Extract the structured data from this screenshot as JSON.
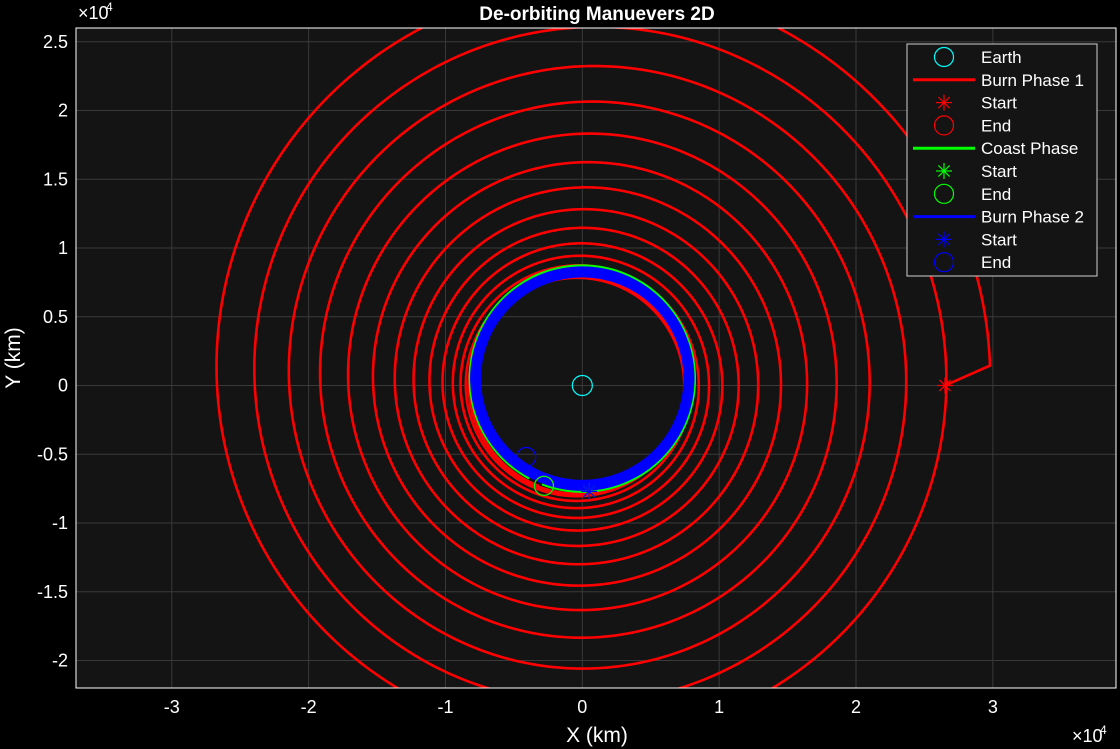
{
  "chart_data": {
    "type": "line",
    "title": "De-orbiting Manuevers 2D",
    "xlabel": "X (km)",
    "ylabel": "Y (km)",
    "x_exponent_label": "×10",
    "y_exponent_label": "×10",
    "exponent": "4",
    "xlim": [
      -3.7,
      3.9
    ],
    "ylim": [
      -2.2,
      2.6
    ],
    "x_ticks": [
      -3,
      -2,
      -1,
      0,
      1,
      2,
      3
    ],
    "x_tick_labels": [
      "-3",
      "-2",
      "-1",
      "0",
      "1",
      "2",
      "3"
    ],
    "y_ticks": [
      -2,
      -1.5,
      -1,
      -0.5,
      0,
      0.5,
      1,
      1.5,
      2,
      2.5
    ],
    "y_tick_labels": [
      "-2",
      "-1.5",
      "-1",
      "-0.5",
      "0",
      "0.5",
      "1",
      "1.5",
      "2",
      "2.5"
    ],
    "grid": true,
    "legend_position": "top-right",
    "colors": {
      "background": "#000000",
      "axes": "#141414",
      "grid": "#3a3a3a",
      "text": "#ffffff",
      "earth": "#00ffff",
      "burn1": "#ff0000",
      "coast": "#00ff00",
      "burn2": "#0000ff"
    },
    "legend": [
      {
        "label": "Earth",
        "kind": "circle",
        "color": "#00ffff"
      },
      {
        "label": "Burn Phase 1",
        "kind": "line",
        "color": "#ff0000"
      },
      {
        "label": "Start",
        "kind": "star",
        "color": "#ff0000"
      },
      {
        "label": "End",
        "kind": "circle",
        "color": "#ff0000"
      },
      {
        "label": "Coast Phase",
        "kind": "line",
        "color": "#00ff00"
      },
      {
        "label": "Start",
        "kind": "star",
        "color": "#00ff00"
      },
      {
        "label": "End",
        "kind": "circle",
        "color": "#00ff00"
      },
      {
        "label": "Burn Phase 2",
        "kind": "line",
        "color": "#0000ff"
      },
      {
        "label": "Start",
        "kind": "star",
        "color": "#0000ff"
      },
      {
        "label": "End",
        "kind": "circle",
        "color": "#0000ff"
      }
    ],
    "series": [
      {
        "name": "Burn Phase 1",
        "shape": "spiral",
        "start_point": [
          2.65,
          0
        ],
        "end_point": [
          -0.28,
          -0.73
        ],
        "outer_radius": 2.4,
        "inner_radius": 0.82,
        "turns": 15
      },
      {
        "name": "Coast Phase",
        "shape": "arc",
        "start_point": [
          0.05,
          -0.77
        ],
        "end_point": [
          -0.28,
          -0.73
        ],
        "radius": 0.82
      },
      {
        "name": "Burn Phase 2",
        "shape": "band",
        "start_point": [
          0.05,
          -0.77
        ],
        "end_point": [
          -0.41,
          -0.52
        ],
        "outer_radius": 0.82,
        "inner_radius": 0.74
      }
    ],
    "earth": {
      "center": [
        0,
        0
      ]
    }
  }
}
